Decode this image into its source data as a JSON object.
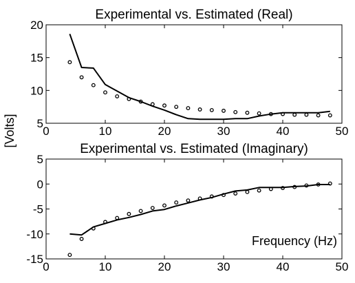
{
  "figure": {
    "ylabel": "[Volts]"
  },
  "chart_data": [
    {
      "type": "line",
      "title": "Experimental vs. Estimated (Real)",
      "xlabel": "",
      "ylabel": "",
      "xlim": [
        0,
        50
      ],
      "ylim": [
        5,
        20
      ],
      "xticks": [
        0,
        10,
        20,
        30,
        40,
        50
      ],
      "yticks": [
        5,
        10,
        15,
        20
      ],
      "grid": false,
      "series": [
        {
          "style": "line",
          "color": "#000000",
          "x": [
            4,
            6,
            8,
            10,
            12,
            14,
            16,
            18,
            20,
            22,
            24,
            26,
            28,
            30,
            32,
            34,
            36,
            38,
            40,
            42,
            44,
            46,
            48
          ],
          "y": [
            18.6,
            13.5,
            13.4,
            10.9,
            9.9,
            8.9,
            8.3,
            7.6,
            7.0,
            6.3,
            5.7,
            5.6,
            5.6,
            5.6,
            5.7,
            5.7,
            6.1,
            6.4,
            6.6,
            6.6,
            6.6,
            6.6,
            6.8
          ]
        },
        {
          "style": "markers",
          "color": "#000000",
          "x": [
            4,
            6,
            8,
            10,
            12,
            14,
            16,
            18,
            20,
            22,
            24,
            26,
            28,
            30,
            32,
            34,
            36,
            38,
            40,
            42,
            44,
            46,
            48
          ],
          "y": [
            14.3,
            12.0,
            10.8,
            9.7,
            9.1,
            8.7,
            8.3,
            7.9,
            7.7,
            7.5,
            7.3,
            7.1,
            7.0,
            6.9,
            6.7,
            6.6,
            6.5,
            6.4,
            6.4,
            6.3,
            6.3,
            6.2,
            6.2
          ]
        }
      ]
    },
    {
      "type": "line",
      "title": "Experimental vs. Estimated (Imaginary)",
      "xlabel": "",
      "ylabel": "",
      "annotation": "Frequency (Hz)",
      "xlim": [
        0,
        50
      ],
      "ylim": [
        -15,
        5
      ],
      "xticks": [
        0,
        10,
        20,
        30,
        40,
        50
      ],
      "yticks": [
        -15,
        -10,
        -5,
        0,
        5
      ],
      "grid": false,
      "series": [
        {
          "style": "line",
          "color": "#000000",
          "x": [
            4,
            6,
            8,
            10,
            12,
            14,
            16,
            18,
            20,
            22,
            24,
            26,
            28,
            30,
            32,
            34,
            36,
            38,
            40,
            42,
            44,
            46,
            48
          ],
          "y": [
            -10.0,
            -10.2,
            -8.6,
            -7.9,
            -7.2,
            -6.7,
            -6.1,
            -5.4,
            -5.1,
            -4.4,
            -3.8,
            -3.2,
            -2.7,
            -2.0,
            -1.4,
            -1.2,
            -0.7,
            -0.7,
            -0.7,
            -0.5,
            -0.4,
            -0.1,
            -0.1
          ]
        },
        {
          "style": "markers",
          "color": "#000000",
          "x": [
            4,
            6,
            8,
            10,
            12,
            14,
            16,
            18,
            20,
            22,
            24,
            26,
            28,
            30,
            32,
            34,
            36,
            38,
            40,
            42,
            44,
            46,
            48
          ],
          "y": [
            -14.2,
            -11.0,
            -8.9,
            -7.6,
            -6.8,
            -6.0,
            -5.4,
            -4.8,
            -4.3,
            -3.7,
            -3.3,
            -2.9,
            -2.5,
            -2.2,
            -1.9,
            -1.6,
            -1.3,
            -1.0,
            -0.8,
            -0.6,
            -0.3,
            -0.1,
            0.1
          ]
        }
      ]
    }
  ]
}
